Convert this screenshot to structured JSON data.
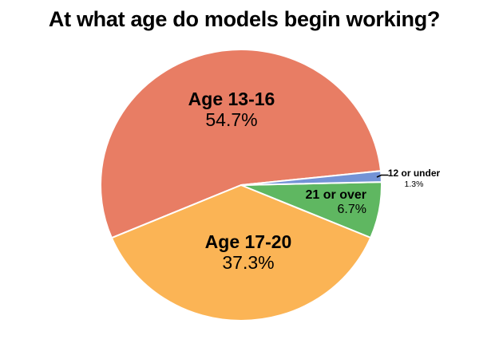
{
  "title": "At what age do models begin working?",
  "background_color": "#FFFFFF",
  "text_color": "#000000",
  "chart_data": {
    "type": "pie",
    "title": "At what age do models begin working?",
    "legend": "none",
    "start_angle_deg": 6,
    "direction": "counterclockwise",
    "slices": [
      {
        "label": "Age 13-16",
        "value": 54.7,
        "pct_label": "54.7%",
        "color": "#E87D64",
        "label_placement": "inside"
      },
      {
        "label": "Age 17-20",
        "value": 37.3,
        "pct_label": "37.3%",
        "color": "#FBB455",
        "label_placement": "inside"
      },
      {
        "label": "21 or over",
        "value": 6.7,
        "pct_label": "6.7%",
        "color": "#5FB761",
        "label_placement": "inside"
      },
      {
        "label": "12 or under",
        "value": 1.3,
        "pct_label": "1.3%",
        "color": "#7493D6",
        "label_placement": "outside-right"
      }
    ]
  }
}
